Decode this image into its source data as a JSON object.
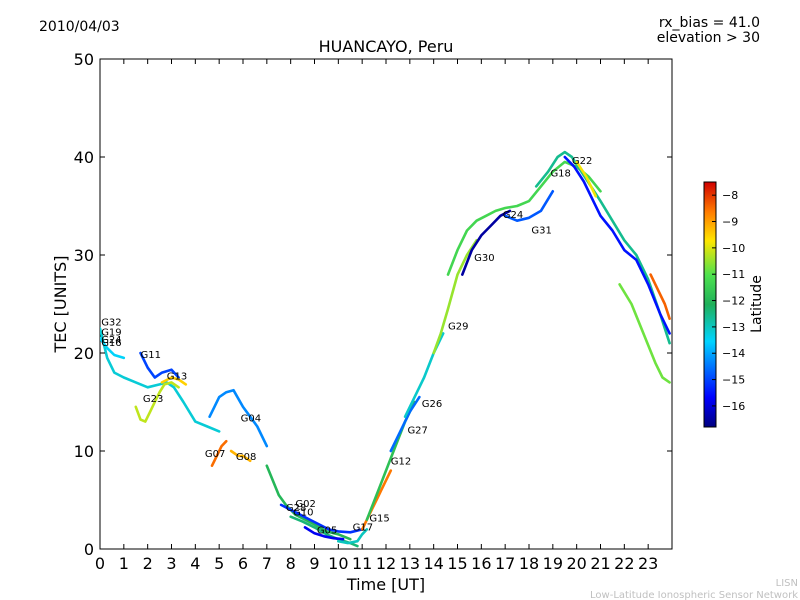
{
  "header": {
    "date": "2010/04/03",
    "rx_bias": "rx_bias = 41.0",
    "elevation": "elevation > 30"
  },
  "footer": {
    "acronym": "LISN",
    "network": "Low-Latitude Ionospheric Sensor Network"
  },
  "chart_data": {
    "type": "scatter",
    "title": "HUANCAYO, Peru",
    "xlabel": "Time [UT]",
    "ylabel": "TEC [UNITS]",
    "xlim": [
      0,
      24
    ],
    "ylim": [
      0,
      50
    ],
    "xticks": [
      0,
      1,
      2,
      3,
      4,
      5,
      6,
      7,
      8,
      9,
      10,
      11,
      12,
      13,
      14,
      15,
      16,
      17,
      18,
      19,
      20,
      21,
      22,
      23
    ],
    "yticks": [
      0,
      10,
      20,
      30,
      40,
      50
    ],
    "grid": false,
    "colorbar": {
      "label": "Latitude",
      "range": [
        -16.8,
        -7.5
      ],
      "ticks": [
        -8,
        -9,
        -10,
        -11,
        -12,
        -13,
        -14,
        -15,
        -16
      ],
      "colormap": "jet"
    },
    "colors": {
      "lat_-16.5": "#00008c",
      "lat_-15.5": "#0070c8",
      "lat_-14.5": "#19a0b4",
      "lat_-13.5": "#1f9f3f",
      "lat_-12.5": "#23c023",
      "lat_-11.5": "#6fdc10",
      "lat_-10.5": "#d2e614",
      "lat_-9.5": "#ffc800",
      "lat_-8.5": "#e61414"
    },
    "series": [
      {
        "name": "G32",
        "lat": -13.2,
        "x": [
          0.0,
          0.3,
          0.6,
          1.0,
          1.5,
          2.0,
          2.5,
          2.8,
          3.1,
          3.5,
          4.0,
          4.5,
          5.0
        ],
        "y": [
          22.5,
          19.5,
          18.0,
          17.5,
          17.0,
          16.5,
          16.8,
          17.0,
          16.5,
          15.0,
          13.0,
          12.5,
          12.0
        ]
      },
      {
        "name": "G19",
        "lat": -13.5,
        "x": [
          0.0,
          0.3,
          0.6,
          1.0
        ],
        "y": [
          21.5,
          20.5,
          19.8,
          19.5
        ]
      },
      {
        "name": "G11",
        "lat": -15.0,
        "x": [
          1.7,
          2.0,
          2.3,
          2.6,
          3.0,
          3.3
        ],
        "y": [
          20.0,
          18.5,
          17.5,
          18.0,
          18.3,
          17.5
        ]
      },
      {
        "name": "G13",
        "lat": -9.5,
        "x": [
          2.6,
          3.0,
          3.3,
          3.6
        ],
        "y": [
          17.0,
          17.5,
          17.3,
          16.8
        ]
      },
      {
        "name": "G23",
        "lat": -10.2,
        "x": [
          1.5,
          1.7,
          1.9,
          2.1,
          2.3,
          2.5,
          2.7,
          3.0,
          3.3
        ],
        "y": [
          14.5,
          13.2,
          13.0,
          14.0,
          15.0,
          16.0,
          16.8,
          17.0,
          16.5
        ]
      },
      {
        "name": "G04",
        "lat": -14.3,
        "x": [
          4.6,
          4.8,
          5.0,
          5.3,
          5.6,
          6.0,
          6.3,
          6.6,
          7.0
        ],
        "y": [
          13.5,
          14.5,
          15.5,
          16.0,
          16.2,
          14.5,
          13.5,
          12.5,
          10.5
        ]
      },
      {
        "name": "G07",
        "lat": -8.5,
        "x": [
          4.7,
          4.9,
          5.1,
          5.3
        ],
        "y": [
          8.5,
          9.5,
          10.5,
          11.0
        ]
      },
      {
        "name": "G08",
        "lat": -9.2,
        "x": [
          5.5,
          5.8,
          6.0,
          6.3
        ],
        "y": [
          10.0,
          9.5,
          9.5,
          9.0
        ]
      },
      {
        "name": "G28",
        "lat": -12.0,
        "x": [
          7.0,
          7.5,
          7.8,
          8.2,
          8.6,
          9.0,
          9.5,
          10.0,
          10.5
        ],
        "y": [
          8.5,
          5.5,
          4.5,
          3.5,
          3.0,
          2.5,
          1.8,
          1.5,
          1.0
        ]
      },
      {
        "name": "G02",
        "lat": -15.2,
        "x": [
          7.6,
          8.0,
          8.4,
          8.8,
          9.2,
          9.6,
          10.0,
          10.5,
          11.0
        ],
        "y": [
          4.5,
          4.0,
          3.5,
          3.0,
          2.5,
          2.0,
          1.8,
          1.7,
          2.0
        ]
      },
      {
        "name": "G10",
        "lat": -12.4,
        "x": [
          8.0,
          8.5,
          9.0,
          9.5,
          10.0,
          10.5,
          10.8
        ],
        "y": [
          3.3,
          2.8,
          2.2,
          1.5,
          1.0,
          0.6,
          0.3
        ]
      },
      {
        "name": "G05",
        "lat": -15.8,
        "x": [
          8.6,
          9.0,
          9.4,
          9.8,
          10.2
        ],
        "y": [
          2.2,
          1.6,
          1.3,
          1.1,
          1.0
        ]
      },
      {
        "name": "G17",
        "lat": -13.0,
        "x": [
          10.0,
          10.4,
          10.8,
          11.0,
          11.2
        ],
        "y": [
          0.8,
          0.6,
          0.8,
          1.5,
          2.0
        ]
      },
      {
        "name": "G15",
        "lat": -8.6,
        "x": [
          11.0,
          11.3,
          11.6,
          11.9,
          12.2
        ],
        "y": [
          2.0,
          3.5,
          5.0,
          6.5,
          8.0
        ]
      },
      {
        "name": "G12",
        "lat": -11.8,
        "x": [
          11.2,
          11.6,
          12.0,
          12.4,
          12.8,
          13.2
        ],
        "y": [
          3.0,
          5.5,
          8.0,
          10.5,
          13.0,
          15.0
        ]
      },
      {
        "name": "G27",
        "lat": -14.6,
        "x": [
          12.2,
          12.6,
          13.0,
          13.4
        ],
        "y": [
          10.0,
          12.0,
          14.0,
          15.5
        ]
      },
      {
        "name": "G26",
        "lat": -13.1,
        "x": [
          12.8,
          13.2,
          13.6,
          14.0,
          14.4
        ],
        "y": [
          13.5,
          15.5,
          17.5,
          20.0,
          22.0
        ]
      },
      {
        "name": "G29",
        "lat": -10.5,
        "x": [
          14.0,
          14.3,
          14.6,
          15.0,
          15.4,
          15.8
        ],
        "y": [
          20.0,
          22.0,
          24.5,
          28.0,
          30.0,
          31.5
        ]
      },
      {
        "name": "G30",
        "lat": -16.5,
        "x": [
          15.2,
          15.6,
          16.0,
          16.4,
          16.8,
          17.2
        ],
        "y": [
          28.0,
          30.5,
          32.0,
          33.0,
          34.0,
          34.5
        ]
      },
      {
        "name": "G24",
        "lat": -11.3,
        "x": [
          14.6,
          15.0,
          15.4,
          15.8,
          16.2,
          16.6,
          17.0,
          17.5,
          18.0,
          18.5,
          19.0,
          19.5,
          20.0,
          20.5,
          21.0
        ],
        "y": [
          28.0,
          30.5,
          32.5,
          33.5,
          34.0,
          34.5,
          34.8,
          35.0,
          35.5,
          37.0,
          38.5,
          39.5,
          39.0,
          38.0,
          36.5
        ]
      },
      {
        "name": "G31",
        "lat": -14.8,
        "x": [
          17.0,
          17.5,
          18.0,
          18.5,
          19.0
        ],
        "y": [
          34.0,
          33.5,
          33.8,
          34.5,
          36.5
        ]
      },
      {
        "name": "G18",
        "lat": -12.6,
        "x": [
          18.3,
          18.8,
          19.2,
          19.5,
          19.8,
          20.2,
          20.6,
          21.0,
          21.5,
          22.0,
          22.5,
          23.0,
          23.5,
          23.9
        ],
        "y": [
          37.0,
          38.5,
          40.0,
          40.5,
          40.0,
          38.5,
          37.0,
          35.5,
          33.5,
          31.5,
          30.0,
          27.5,
          24.0,
          21.0
        ]
      },
      {
        "name": "G22",
        "lat": -15.5,
        "x": [
          19.5,
          19.9,
          20.3,
          20.7,
          21.0,
          21.5,
          22.0,
          22.5,
          23.0,
          23.5,
          23.9
        ],
        "y": [
          40.0,
          39.0,
          37.5,
          35.5,
          34.0,
          32.5,
          30.5,
          29.5,
          27.0,
          24.0,
          22.0
        ]
      },
      {
        "name": "",
        "lat": -10.8,
        "x": [
          21.8,
          22.3,
          22.8,
          23.3,
          23.6,
          23.9
        ],
        "y": [
          27.0,
          25.0,
          22.0,
          19.0,
          17.5,
          17.0
        ]
      },
      {
        "name": "",
        "lat": -8.4,
        "x": [
          23.1,
          23.4,
          23.7,
          23.9
        ],
        "y": [
          28.0,
          26.5,
          25.0,
          23.5
        ]
      },
      {
        "name": "",
        "lat": -9.8,
        "x": [
          20.0,
          20.4,
          20.8
        ],
        "y": [
          39.5,
          38.0,
          36.0
        ]
      }
    ],
    "annotations": [
      {
        "text": "G32",
        "x": 0.05,
        "y": 22.8
      },
      {
        "text": "G19",
        "x": 0.05,
        "y": 21.8
      },
      {
        "text": "G24",
        "x": 0.05,
        "y": 21.0
      },
      {
        "text": "G16",
        "x": 0.05,
        "y": 20.7
      },
      {
        "text": "G11",
        "x": 1.7,
        "y": 19.5
      },
      {
        "text": "G13",
        "x": 2.8,
        "y": 17.3
      },
      {
        "text": "G23",
        "x": 1.8,
        "y": 15.0
      },
      {
        "text": "G04",
        "x": 5.9,
        "y": 13.0
      },
      {
        "text": "G07",
        "x": 4.4,
        "y": 9.4
      },
      {
        "text": "G08",
        "x": 5.7,
        "y": 9.1
      },
      {
        "text": "G28",
        "x": 7.8,
        "y": 3.9
      },
      {
        "text": "G02",
        "x": 8.2,
        "y": 4.3
      },
      {
        "text": "G10",
        "x": 8.1,
        "y": 3.4
      },
      {
        "text": "G05",
        "x": 9.1,
        "y": 1.6
      },
      {
        "text": "G17",
        "x": 10.6,
        "y": 1.9
      },
      {
        "text": "G15",
        "x": 11.3,
        "y": 2.8
      },
      {
        "text": "G12",
        "x": 12.2,
        "y": 8.6
      },
      {
        "text": "G27",
        "x": 12.9,
        "y": 11.8
      },
      {
        "text": "G26",
        "x": 13.5,
        "y": 14.5
      },
      {
        "text": "G29",
        "x": 14.6,
        "y": 22.4
      },
      {
        "text": "G30",
        "x": 15.7,
        "y": 29.4
      },
      {
        "text": "G24",
        "x": 16.9,
        "y": 33.8
      },
      {
        "text": "G31",
        "x": 18.1,
        "y": 32.2
      },
      {
        "text": "G18",
        "x": 18.9,
        "y": 38.0
      },
      {
        "text": "G22",
        "x": 19.8,
        "y": 39.3
      }
    ]
  }
}
